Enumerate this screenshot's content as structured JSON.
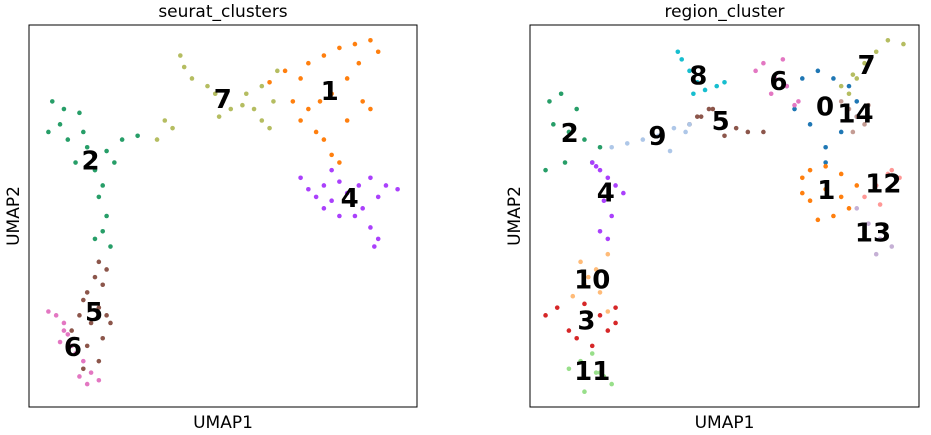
{
  "chart_data": [
    {
      "type": "scatter",
      "title": "seurat_clusters",
      "xlabel": "UMAP1",
      "ylabel": "UMAP2",
      "xlim": [
        0,
        100
      ],
      "ylim": [
        0,
        100
      ],
      "series": [
        {
          "name": "1",
          "color": "#ff7f0e",
          "x": [
            62,
            66,
            70,
            72,
            76,
            80,
            84,
            88,
            90,
            85,
            82,
            78,
            75,
            72,
            70,
            74,
            76,
            78,
            80,
            82,
            86,
            88,
            68
          ],
          "values": [
            85,
            88,
            86,
            90,
            92,
            94,
            95,
            96,
            93,
            90,
            86,
            82,
            80,
            78,
            75,
            72,
            70,
            66,
            64,
            75,
            80,
            78,
            80
          ]
        },
        {
          "name": "2",
          "color": "#279e68",
          "x": [
            6,
            9,
            13,
            5,
            10,
            15,
            20,
            24,
            28,
            12,
            17,
            19,
            18,
            20,
            19,
            17,
            21,
            8,
            14,
            22
          ],
          "values": [
            80,
            78,
            77,
            72,
            70,
            68,
            67,
            70,
            71,
            64,
            62,
            58,
            55,
            50,
            46,
            44,
            42,
            74,
            72,
            64
          ]
        },
        {
          "name": "4",
          "color": "#aa40fc",
          "x": [
            70,
            72,
            74,
            76,
            78,
            80,
            82,
            85,
            88,
            92,
            95,
            90,
            86,
            84,
            88,
            90,
            89,
            76,
            80,
            78
          ],
          "values": [
            60,
            57,
            55,
            58,
            62,
            59,
            56,
            58,
            60,
            58,
            57,
            55,
            52,
            50,
            47,
            44,
            42,
            52,
            50,
            54
          ]
        },
        {
          "name": "5",
          "color": "#8c564b",
          "x": [
            18,
            20,
            17,
            19,
            15,
            14,
            18,
            20,
            21,
            16,
            13,
            11,
            15,
            19,
            18,
            14
          ],
          "values": [
            38,
            36,
            34,
            32,
            30,
            28,
            26,
            24,
            22,
            22,
            24,
            20,
            16,
            18,
            12,
            10
          ]
        },
        {
          "name": "6",
          "color": "#e377c2",
          "x": [
            5,
            7,
            9,
            10,
            8,
            12,
            14,
            16,
            18,
            15,
            13,
            11,
            9
          ],
          "values": [
            25,
            24,
            22,
            19,
            17,
            14,
            12,
            9,
            7,
            6,
            8,
            16,
            20
          ]
        },
        {
          "name": "7",
          "color": "#b5bd61",
          "x": [
            39,
            40,
            42,
            46,
            48,
            50,
            49,
            52,
            55,
            58,
            60,
            62,
            35,
            37,
            33,
            56,
            60,
            64,
            63
          ],
          "values": [
            92,
            89,
            86,
            84,
            82,
            80,
            76,
            78,
            79,
            78,
            75,
            73,
            75,
            73,
            70,
            82,
            84,
            88,
            80
          ]
        }
      ]
    },
    {
      "type": "scatter",
      "title": "region_cluster",
      "xlabel": "UMAP1",
      "ylabel": "UMAP2",
      "xlim": [
        0,
        100
      ],
      "ylim": [
        0,
        100
      ],
      "series": [
        {
          "name": "0",
          "color": "#1f77b4",
          "x": [
            66,
            70,
            74,
            78,
            82,
            84,
            72,
            80,
            76,
            76,
            68,
            84
          ],
          "values": [
            84,
            86,
            88,
            86,
            84,
            80,
            74,
            72,
            68,
            64,
            78,
            76
          ]
        },
        {
          "name": "1",
          "color": "#ff7f0e",
          "x": [
            70,
            72,
            76,
            80,
            84,
            72,
            78,
            82,
            74,
            70,
            80,
            76
          ],
          "values": [
            60,
            62,
            63,
            61,
            58,
            54,
            50,
            52,
            49,
            56,
            55,
            57
          ]
        },
        {
          "name": "2",
          "color": "#279e68",
          "x": [
            5,
            8,
            12,
            6,
            10,
            14,
            18,
            16,
            9,
            4
          ],
          "values": [
            80,
            82,
            78,
            74,
            72,
            70,
            68,
            64,
            64,
            62
          ]
        },
        {
          "name": "3",
          "color": "#d62728",
          "x": [
            4,
            7,
            10,
            14,
            18,
            22,
            12,
            16,
            20,
            22
          ],
          "values": [
            24,
            26,
            20,
            27,
            24,
            22,
            18,
            16,
            20,
            26
          ]
        },
        {
          "name": "4",
          "color": "#aa40fc",
          "x": [
            16,
            18,
            20,
            22,
            24,
            19,
            21,
            18,
            20,
            17
          ],
          "values": [
            64,
            62,
            60,
            58,
            56,
            54,
            50,
            46,
            44,
            63
          ]
        },
        {
          "name": "5",
          "color": "#8c564b",
          "x": [
            41,
            44,
            47,
            50,
            53,
            56,
            60,
            46,
            50,
            43
          ],
          "values": [
            74,
            76,
            78,
            75,
            73,
            72,
            72,
            78,
            71,
            76
          ]
        },
        {
          "name": "6",
          "color": "#e377c2",
          "x": [
            58,
            60,
            63,
            66,
            69,
            62,
            65,
            68
          ],
          "values": [
            88,
            90,
            86,
            84,
            80,
            82,
            91,
            79
          ]
        },
        {
          "name": "7",
          "color": "#b5bd61",
          "x": [
            80,
            83,
            86,
            89,
            92,
            96,
            84,
            82
          ],
          "values": [
            84,
            87,
            90,
            93,
            96,
            95,
            86,
            82
          ]
        },
        {
          "name": "8",
          "color": "#17becf",
          "x": [
            38,
            39,
            41,
            43,
            45,
            48,
            50,
            42
          ],
          "values": [
            93,
            91,
            88,
            85,
            83,
            84,
            85,
            82
          ]
        },
        {
          "name": "9",
          "color": "#aec7e8",
          "x": [
            21,
            25,
            29,
            33,
            37,
            41,
            36,
            40
          ],
          "values": [
            68,
            69,
            70,
            71,
            73,
            74,
            67,
            72
          ]
        },
        {
          "name": "10",
          "color": "#ffbb78",
          "x": [
            11,
            14,
            17,
            20,
            15,
            18,
            13,
            20
          ],
          "values": [
            29,
            32,
            36,
            40,
            34,
            30,
            38,
            25
          ]
        },
        {
          "name": "11",
          "color": "#98df8a",
          "x": [
            10,
            13,
            16,
            19,
            21,
            14,
            17,
            18
          ],
          "values": [
            10,
            12,
            14,
            8,
            6,
            4,
            9,
            9
          ]
        },
        {
          "name": "12",
          "color": "#ff9896",
          "x": [
            86,
            89,
            92,
            95,
            90,
            93
          ],
          "values": [
            55,
            58,
            61,
            60,
            53,
            62
          ]
        },
        {
          "name": "13",
          "color": "#c5b0d5",
          "x": [
            84,
            87,
            90,
            93,
            86,
            89
          ],
          "values": [
            52,
            48,
            44,
            42,
            46,
            40
          ]
        },
        {
          "name": "14",
          "color": "#c49c94",
          "x": [
            80,
            82,
            84,
            86,
            87,
            83
          ],
          "values": [
            80,
            78,
            76,
            74,
            79,
            72
          ]
        }
      ]
    }
  ]
}
